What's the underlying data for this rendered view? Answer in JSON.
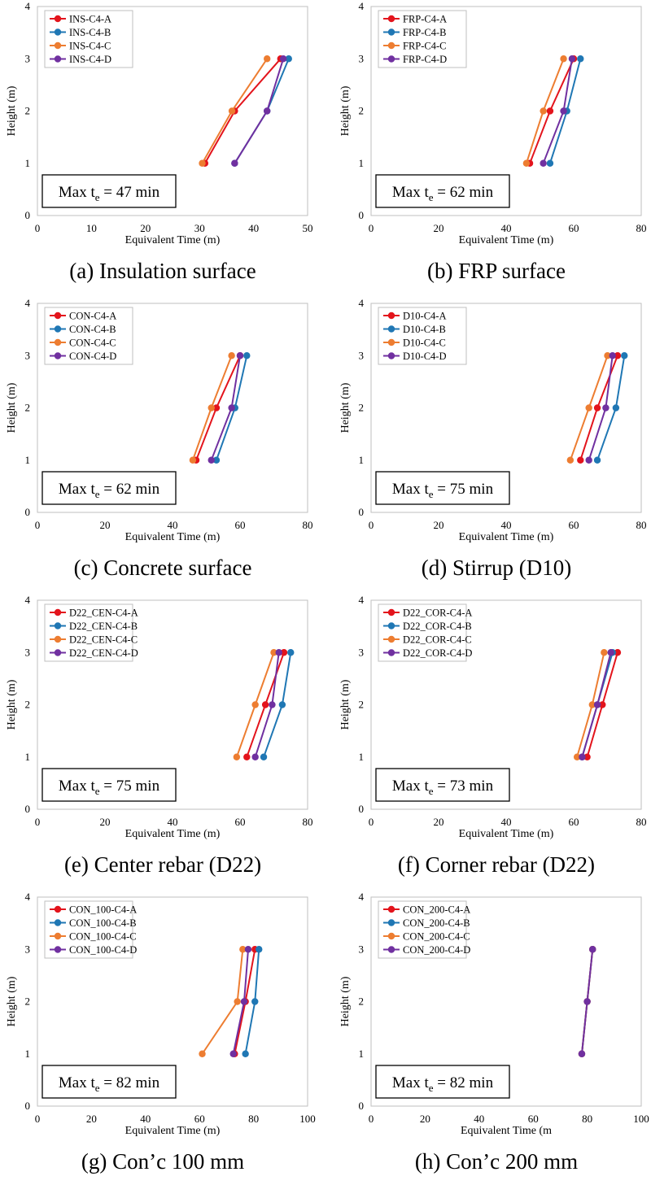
{
  "colors": {
    "A": "#e3141c",
    "B": "#1f77b4",
    "C": "#ed7d31",
    "D": "#7030a0"
  },
  "chart_data": [
    {
      "type": "line",
      "caption": "(a) Insulation surface",
      "xlabel": "Equivalent Time (m)",
      "ylabel": "Height (m)",
      "xlim": [
        0,
        50
      ],
      "xticks": [
        0,
        10,
        20,
        30,
        40,
        50
      ],
      "ylim": [
        0,
        4
      ],
      "yticks": [
        0,
        1,
        2,
        3,
        4
      ],
      "legend_position": "top-left",
      "annotation": {
        "prefix": "Max t",
        "sub": "e",
        "suffix": " = 47 min"
      },
      "series": [
        {
          "name": "INS-C4-A",
          "key": "A",
          "x": [
            31,
            36.5,
            45
          ],
          "y": [
            1,
            2,
            3
          ]
        },
        {
          "name": "INS-C4-B",
          "key": "B",
          "x": [
            36.5,
            42.5,
            46.5
          ],
          "y": [
            1,
            2,
            3
          ]
        },
        {
          "name": "INS-C4-C",
          "key": "C",
          "x": [
            30.5,
            36,
            42.5
          ],
          "y": [
            1,
            2,
            3
          ]
        },
        {
          "name": "INS-C4-D",
          "key": "D",
          "x": [
            36.5,
            42.5,
            45.5
          ],
          "y": [
            1,
            2,
            3
          ]
        }
      ]
    },
    {
      "type": "line",
      "caption": "(b) FRP surface",
      "xlabel": "Equivalent Time (m)",
      "ylabel": "Height (m)",
      "xlim": [
        0,
        80
      ],
      "xticks": [
        0,
        20,
        40,
        60,
        80
      ],
      "ylim": [
        0,
        4
      ],
      "yticks": [
        0,
        1,
        2,
        3,
        4
      ],
      "legend_position": "top-left",
      "annotation": {
        "prefix": "Max t",
        "sub": "e",
        "suffix": " = 62 min"
      },
      "series": [
        {
          "name": "FRP-C4-A",
          "key": "A",
          "x": [
            47,
            53,
            60
          ],
          "y": [
            1,
            2,
            3
          ]
        },
        {
          "name": "FRP-C4-B",
          "key": "B",
          "x": [
            53,
            58,
            62
          ],
          "y": [
            1,
            2,
            3
          ]
        },
        {
          "name": "FRP-C4-C",
          "key": "C",
          "x": [
            46,
            51,
            57
          ],
          "y": [
            1,
            2,
            3
          ]
        },
        {
          "name": "FRP-C4-D",
          "key": "D",
          "x": [
            51,
            57,
            59.5
          ],
          "y": [
            1,
            2,
            3
          ]
        }
      ]
    },
    {
      "type": "line",
      "caption": "(c) Concrete surface",
      "xlabel": "Equivalent Time (m)",
      "ylabel": "Height (m)",
      "xlim": [
        0,
        80
      ],
      "xticks": [
        0,
        20,
        40,
        60,
        80
      ],
      "ylim": [
        0,
        4
      ],
      "yticks": [
        0,
        1,
        2,
        3,
        4
      ],
      "legend_position": "top-left",
      "annotation": {
        "prefix": "Max t",
        "sub": "e",
        "suffix": " = 62 min"
      },
      "series": [
        {
          "name": "CON-C4-A",
          "key": "A",
          "x": [
            47,
            53,
            60
          ],
          "y": [
            1,
            2,
            3
          ]
        },
        {
          "name": "CON-C4-B",
          "key": "B",
          "x": [
            53,
            58.5,
            62
          ],
          "y": [
            1,
            2,
            3
          ]
        },
        {
          "name": "CON-C4-C",
          "key": "C",
          "x": [
            46,
            51.5,
            57.5
          ],
          "y": [
            1,
            2,
            3
          ]
        },
        {
          "name": "CON-C4-D",
          "key": "D",
          "x": [
            51.5,
            57.5,
            60
          ],
          "y": [
            1,
            2,
            3
          ]
        }
      ]
    },
    {
      "type": "line",
      "caption": "(d) Stirrup (D10)",
      "xlabel": "Equivalent Time (m)",
      "ylabel": "Height (m)",
      "xlim": [
        0,
        80
      ],
      "xticks": [
        0,
        20,
        40,
        60,
        80
      ],
      "ylim": [
        0,
        4
      ],
      "yticks": [
        0,
        1,
        2,
        3,
        4
      ],
      "legend_position": "top-left",
      "annotation": {
        "prefix": "Max t",
        "sub": "e",
        "suffix": " = 75 min"
      },
      "series": [
        {
          "name": "D10-C4-A",
          "key": "A",
          "x": [
            62,
            67,
            73
          ],
          "y": [
            1,
            2,
            3
          ]
        },
        {
          "name": "D10-C4-B",
          "key": "B",
          "x": [
            67,
            72.5,
            75
          ],
          "y": [
            1,
            2,
            3
          ]
        },
        {
          "name": "D10-C4-C",
          "key": "C",
          "x": [
            59,
            64.5,
            70
          ],
          "y": [
            1,
            2,
            3
          ]
        },
        {
          "name": "D10-C4-D",
          "key": "D",
          "x": [
            64.5,
            69.5,
            71.5
          ],
          "y": [
            1,
            2,
            3
          ]
        }
      ]
    },
    {
      "type": "line",
      "caption": "(e) Center rebar (D22)",
      "xlabel": "Equivalent Time (m)",
      "ylabel": "Height (m)",
      "xlim": [
        0,
        80
      ],
      "xticks": [
        0,
        20,
        40,
        60,
        80
      ],
      "ylim": [
        0,
        4
      ],
      "yticks": [
        0,
        1,
        2,
        3,
        4
      ],
      "legend_position": "top-left",
      "annotation": {
        "prefix": "Max t",
        "sub": "e",
        "suffix": " = 75 min"
      },
      "series": [
        {
          "name": "D22_CEN-C4-A",
          "key": "A",
          "x": [
            62,
            67.5,
            73
          ],
          "y": [
            1,
            2,
            3
          ]
        },
        {
          "name": "D22_CEN-C4-B",
          "key": "B",
          "x": [
            67,
            72.5,
            75
          ],
          "y": [
            1,
            2,
            3
          ]
        },
        {
          "name": "D22_CEN-C4-C",
          "key": "C",
          "x": [
            59,
            64.5,
            70
          ],
          "y": [
            1,
            2,
            3
          ]
        },
        {
          "name": "D22_CEN-C4-D",
          "key": "D",
          "x": [
            64.5,
            69.5,
            71.5
          ],
          "y": [
            1,
            2,
            3
          ]
        }
      ]
    },
    {
      "type": "line",
      "caption": "(f) Corner rebar (D22)",
      "xlabel": "Equivalent Time (m)",
      "ylabel": "Height (m)",
      "xlim": [
        0,
        80
      ],
      "xticks": [
        0,
        20,
        40,
        60,
        80
      ],
      "ylim": [
        0,
        4
      ],
      "yticks": [
        0,
        1,
        2,
        3,
        4
      ],
      "legend_position": "top-left",
      "annotation": {
        "prefix": "Max t",
        "sub": "e",
        "suffix": " = 73 min"
      },
      "series": [
        {
          "name": "D22_COR-C4-A",
          "key": "A",
          "x": [
            64,
            68.5,
            73
          ],
          "y": [
            1,
            2,
            3
          ]
        },
        {
          "name": "D22_COR-C4-B",
          "key": "B",
          "x": [
            62.5,
            67,
            71.5
          ],
          "y": [
            1,
            2,
            3
          ]
        },
        {
          "name": "D22_COR-C4-C",
          "key": "C",
          "x": [
            61,
            65.5,
            69
          ],
          "y": [
            1,
            2,
            3
          ]
        },
        {
          "name": "D22_COR-C4-D",
          "key": "D",
          "x": [
            62.5,
            67,
            71
          ],
          "y": [
            1,
            2,
            3
          ]
        }
      ]
    },
    {
      "type": "line",
      "caption": "(g) Con’c 100 mm",
      "xlabel": "Equivalent Time (m)",
      "ylabel": "Height (m)",
      "xlim": [
        0,
        100
      ],
      "xticks": [
        0,
        20,
        40,
        60,
        80,
        100
      ],
      "ylim": [
        0,
        4
      ],
      "yticks": [
        0,
        1,
        2,
        3,
        4
      ],
      "legend_position": "top-left",
      "annotation": {
        "prefix": "Max t",
        "sub": "e",
        "suffix": " = 82 min"
      },
      "series": [
        {
          "name": "CON_100-C4-A",
          "key": "A",
          "x": [
            73,
            77,
            80.5
          ],
          "y": [
            1,
            2,
            3
          ]
        },
        {
          "name": "CON_100-C4-B",
          "key": "B",
          "x": [
            77,
            80.5,
            82
          ],
          "y": [
            1,
            2,
            3
          ]
        },
        {
          "name": "CON_100-C4-C",
          "key": "C",
          "x": [
            61,
            74,
            76
          ],
          "y": [
            1,
            2,
            3
          ]
        },
        {
          "name": "CON_100-C4-D",
          "key": "D",
          "x": [
            72.5,
            76.5,
            78
          ],
          "y": [
            1,
            2,
            3
          ]
        }
      ]
    },
    {
      "type": "line",
      "caption": "(h) Con’c 200 mm",
      "xlabel": "Equivalent Time (m",
      "ylabel": "Height (m)",
      "xlim": [
        0,
        100
      ],
      "xticks": [
        0,
        20,
        40,
        60,
        80,
        100
      ],
      "ylim": [
        0,
        4
      ],
      "yticks": [
        0,
        1,
        2,
        3,
        4
      ],
      "legend_position": "top-left",
      "annotation": {
        "prefix": "Max t",
        "sub": "e",
        "suffix": " = 82 min"
      },
      "series": [
        {
          "name": "CON_200-C4-A",
          "key": "A",
          "x": [
            78,
            80,
            82
          ],
          "y": [
            1,
            2,
            3
          ]
        },
        {
          "name": "CON_200-C4-B",
          "key": "B",
          "x": [
            78,
            80,
            82
          ],
          "y": [
            1,
            2,
            3
          ]
        },
        {
          "name": "CON_200-C4-C",
          "key": "C",
          "x": [
            78,
            80,
            82
          ],
          "y": [
            1,
            2,
            3
          ]
        },
        {
          "name": "CON_200-C4-D",
          "key": "D",
          "x": [
            78,
            80,
            82
          ],
          "y": [
            1,
            2,
            3
          ]
        }
      ]
    }
  ]
}
